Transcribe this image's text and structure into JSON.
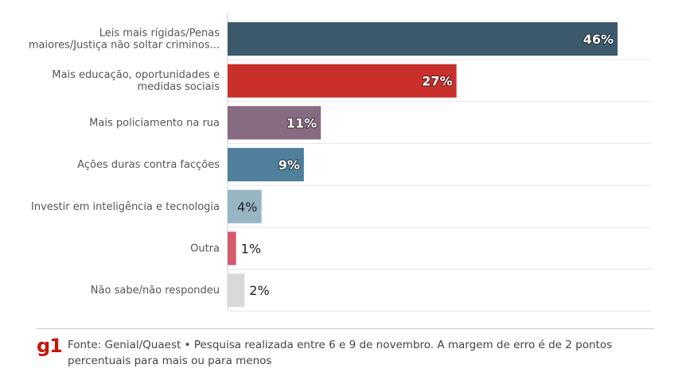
{
  "chart_data": {
    "type": "bar",
    "orientation": "horizontal",
    "title": "",
    "xlabel": "",
    "ylabel": "",
    "unit": "%",
    "xlim": [
      0,
      50
    ],
    "grid": true,
    "categories": [
      [
        "Leis mais rígidas/Penas",
        "maiores/Justiça não soltar criminos..."
      ],
      [
        "Mais educação, oportunidades e",
        "medidas sociais"
      ],
      [
        "Mais policiamento na rua"
      ],
      [
        "Ações duras contra facções"
      ],
      [
        "Investir em inteligência e tecnologia"
      ],
      [
        "Outra"
      ],
      [
        "Não sabe/não respondeu"
      ]
    ],
    "values": [
      46,
      27,
      11,
      9,
      4,
      1,
      2
    ],
    "value_labels": [
      "46%",
      "27%",
      "11%",
      "9%",
      "4%",
      "1%",
      "2%"
    ],
    "colors": [
      "#3d5a6c",
      "#c9302c",
      "#876b80",
      "#4f7f9a",
      "#98b5c4",
      "#d45a6e",
      "#d9d9d9"
    ]
  },
  "footer": {
    "logo": "g1",
    "source": "Fonte: Genial/Quaest • Pesquisa realizada entre 6 e 9 de novembro. A margem de erro é de 2 pontos percentuais para mais ou para menos"
  }
}
